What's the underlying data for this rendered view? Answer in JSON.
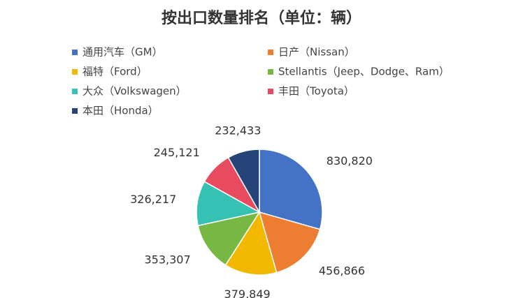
{
  "chart_data": {
    "type": "pie",
    "title": "按出口数量排名（单位：辆）",
    "categories": [
      "通用汽车（GM）",
      "日产（Nissan）",
      "福特（Ford）",
      "Stellantis（Jeep、Dodge、Ram）",
      "大众（Volkswagen）",
      "丰田（Toyota）",
      "本田（Honda）"
    ],
    "values": [
      830820,
      456866,
      379849,
      353307,
      326217,
      245121,
      232433
    ],
    "value_labels": [
      "830,820",
      "456,866",
      "379,849",
      "353,307",
      "326,217",
      "245,121",
      "232,433"
    ],
    "colors": [
      "#4472c4",
      "#ed7d31",
      "#f2b800",
      "#76b843",
      "#35c2b4",
      "#e84a5f",
      "#264478"
    ]
  }
}
